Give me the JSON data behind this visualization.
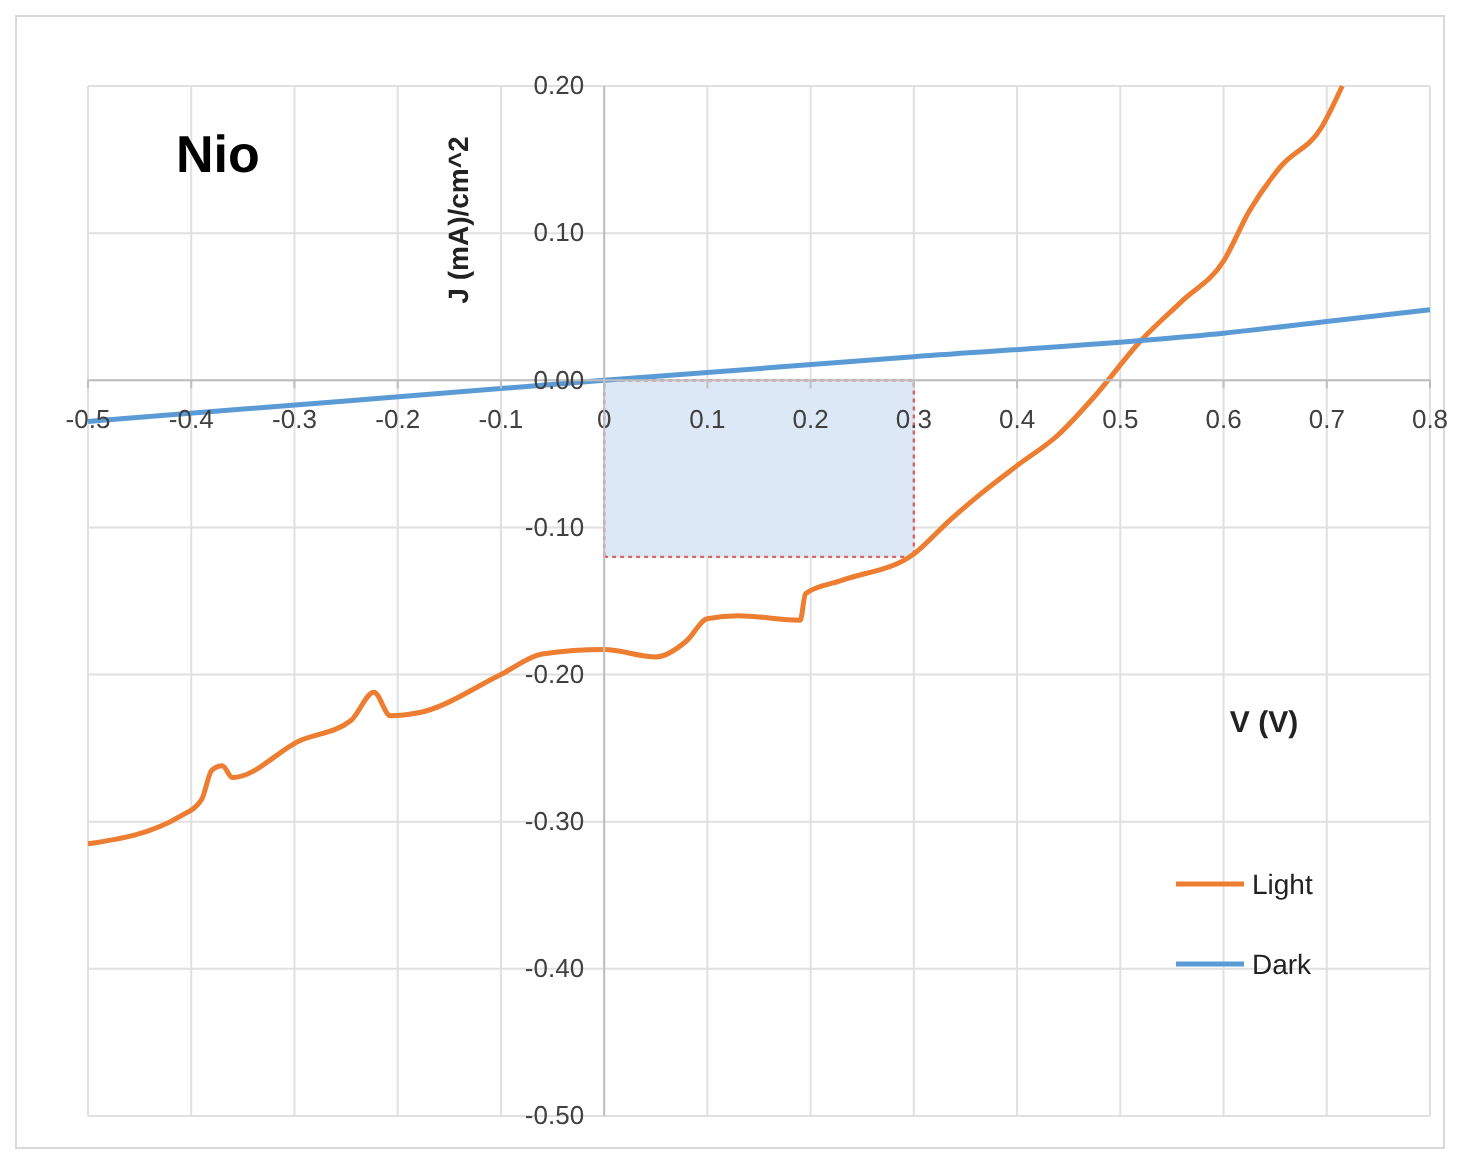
{
  "chart_data": {
    "type": "line",
    "title": "Nio",
    "xlabel": "V (V)",
    "ylabel": "J (mA)/cm^2",
    "xlim": [
      -0.5,
      0.8
    ],
    "xticks": [
      -0.5,
      -0.4,
      -0.3,
      -0.2,
      -0.1,
      {
        "value": 0,
        "label": "0"
      },
      0.1,
      0.2,
      0.3,
      0.4,
      0.5,
      0.6,
      0.7,
      0.8
    ],
    "ylim": [
      -0.5,
      0.2
    ],
    "yticks": [
      {
        "value": -0.5,
        "label": "-0.50"
      },
      {
        "value": -0.4,
        "label": "-0.40"
      },
      {
        "value": -0.3,
        "label": "-0.30"
      },
      {
        "value": -0.2,
        "label": "-0.20"
      },
      {
        "value": -0.1,
        "label": "-0.10"
      },
      {
        "value": 0,
        "label": "0.00"
      },
      {
        "value": 0.1,
        "label": "0.10"
      },
      {
        "value": 0.2,
        "label": "0.20"
      }
    ],
    "grid": true,
    "legend": "right",
    "line_style": "solid",
    "marker": "none",
    "series": [
      {
        "type": "area",
        "color": "#dce8f5",
        "x": [
          0,
          0.3
        ],
        "values": [
          -0.12,
          -0.12
        ]
      },
      {
        "name": "Light",
        "color": "#ed7d31",
        "x": [
          -0.5,
          -0.41,
          -0.39,
          -0.38,
          -0.37,
          -0.36,
          -0.295,
          -0.245,
          -0.223,
          -0.207,
          -0.18,
          -0.1,
          -0.06,
          0,
          0.05,
          0.08,
          0.1,
          0.13,
          0.19,
          0.195,
          0.23,
          0.3,
          0.335,
          0.365,
          0.4,
          0.44,
          0.475,
          0.52,
          0.56,
          0.6,
          0.625,
          0.655,
          0.695,
          0.715
        ],
        "values": [
          -0.315,
          -0.296,
          -0.285,
          -0.265,
          -0.262,
          -0.27,
          -0.245,
          -0.231,
          -0.212,
          -0.228,
          -0.226,
          -0.2,
          -0.186,
          -0.183,
          -0.188,
          -0.177,
          -0.162,
          -0.16,
          -0.163,
          -0.145,
          -0.136,
          -0.118,
          -0.095,
          -0.077,
          -0.058,
          -0.037,
          -0.011,
          0.027,
          0.054,
          0.081,
          0.115,
          0.145,
          0.172,
          0.2
        ]
      },
      {
        "name": "Dark",
        "color": "#5b9bd5",
        "x": [
          -0.5,
          -0.25,
          0,
          0.3,
          0.52,
          0.6,
          0.7,
          0.8
        ],
        "values": [
          -0.028,
          -0.014,
          0,
          0.016,
          0.027,
          0.032,
          0.04,
          0.048
        ]
      }
    ]
  }
}
